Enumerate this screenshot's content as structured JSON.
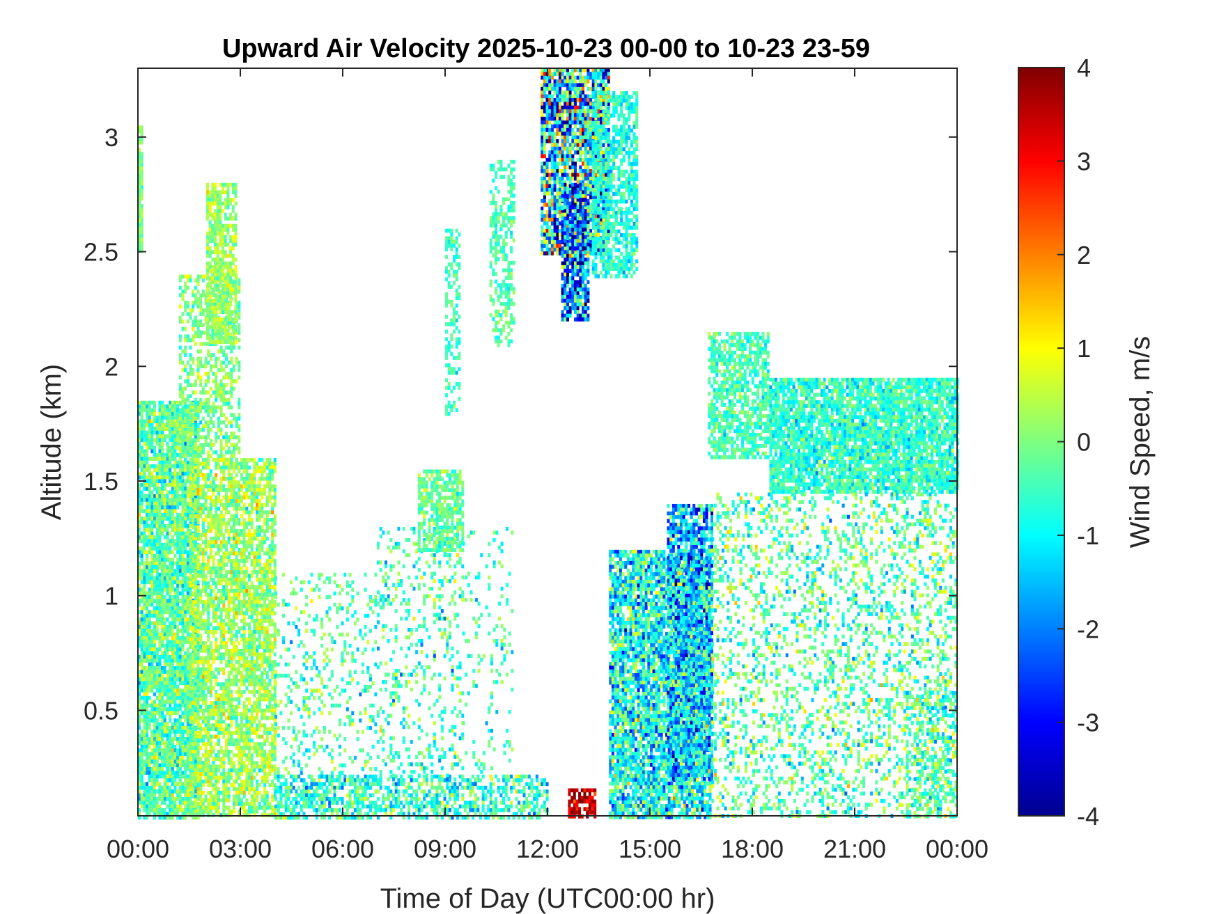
{
  "chart_data": {
    "type": "heatmap",
    "title": "Upward Air Velocity 2025-10-23 00-00 to 10-23 23-59",
    "xlabel": "Time of Day (UTC00:00 hr)",
    "ylabel": "Altitude (km)",
    "colorbar_label": "Wind Speed, m/s",
    "colormap": "jet",
    "x_unit": "hours",
    "xlim": [
      0,
      24
    ],
    "ylim": [
      0.04,
      3.3
    ],
    "clim": [
      -4,
      4
    ],
    "x_ticks": [
      0,
      3,
      6,
      9,
      12,
      15,
      18,
      21,
      24
    ],
    "x_tick_labels": [
      "00:00",
      "03:00",
      "06:00",
      "09:00",
      "12:00",
      "15:00",
      "18:00",
      "21:00",
      "00:00"
    ],
    "y_ticks": [
      0.5,
      1,
      1.5,
      2,
      2.5,
      3
    ],
    "y_tick_labels": [
      "0.5",
      "1",
      "1.5",
      "2",
      "2.5",
      "3"
    ],
    "colorbar_ticks": [
      4,
      3,
      2,
      1,
      0,
      -1,
      -2,
      -3,
      -4
    ],
    "colorbar_tick_labels": [
      "4",
      "3",
      "2",
      "1",
      "0",
      "-1",
      "-2",
      "-3",
      "-4"
    ],
    "grid": false,
    "regions": [
      {
        "x": [
          0.0,
          1.8
        ],
        "y": [
          0.04,
          1.85
        ],
        "mean": -0.3,
        "spread": 0.9,
        "density": 0.88
      },
      {
        "x": [
          0.0,
          0.15
        ],
        "y": [
          2.5,
          3.05
        ],
        "mean": 0.0,
        "spread": 0.5,
        "density": 0.9
      },
      {
        "x": [
          1.5,
          4.0
        ],
        "y": [
          0.04,
          1.6
        ],
        "mean": 0.2,
        "spread": 0.8,
        "density": 0.75
      },
      {
        "x": [
          1.2,
          3.0
        ],
        "y": [
          1.6,
          2.4
        ],
        "mean": 0.0,
        "spread": 0.6,
        "density": 0.5
      },
      {
        "x": [
          2.0,
          2.9
        ],
        "y": [
          2.1,
          2.8
        ],
        "mean": 0.2,
        "spread": 0.6,
        "density": 0.75
      },
      {
        "x": [
          4.0,
          7.0
        ],
        "y": [
          0.04,
          1.1
        ],
        "mean": -0.4,
        "spread": 0.9,
        "density": 0.18
      },
      {
        "x": [
          4.0,
          12.0
        ],
        "y": [
          0.04,
          0.22
        ],
        "mean": -0.6,
        "spread": 1.0,
        "density": 0.55
      },
      {
        "x": [
          7.0,
          9.5
        ],
        "y": [
          0.2,
          1.3
        ],
        "mean": -0.5,
        "spread": 0.9,
        "density": 0.2
      },
      {
        "x": [
          8.2,
          9.5
        ],
        "y": [
          1.2,
          1.55
        ],
        "mean": -0.2,
        "spread": 0.6,
        "density": 0.72
      },
      {
        "x": [
          9.5,
          11.0
        ],
        "y": [
          0.2,
          1.3
        ],
        "mean": -0.5,
        "spread": 0.8,
        "density": 0.1
      },
      {
        "x": [
          9.0,
          9.4
        ],
        "y": [
          1.8,
          2.6
        ],
        "mean": -0.5,
        "spread": 0.5,
        "density": 0.5
      },
      {
        "x": [
          10.3,
          11.0
        ],
        "y": [
          2.1,
          2.9
        ],
        "mean": -0.4,
        "spread": 0.5,
        "density": 0.5
      },
      {
        "x": [
          11.8,
          13.8
        ],
        "y": [
          2.5,
          3.3
        ],
        "mean": -1.0,
        "spread": 2.8,
        "density": 0.85
      },
      {
        "x": [
          12.4,
          13.2
        ],
        "y": [
          2.2,
          2.8
        ],
        "mean": -2.0,
        "spread": 2.2,
        "density": 0.8
      },
      {
        "x": [
          13.3,
          14.6
        ],
        "y": [
          2.4,
          3.2
        ],
        "mean": -0.7,
        "spread": 0.6,
        "density": 0.65
      },
      {
        "x": [
          12.6,
          13.4
        ],
        "y": [
          0.04,
          0.16
        ],
        "mean": 3.5,
        "spread": 0.8,
        "density": 0.7
      },
      {
        "x": [
          13.8,
          16.8
        ],
        "y": [
          0.04,
          1.2
        ],
        "mean": -0.9,
        "spread": 1.3,
        "density": 0.82
      },
      {
        "x": [
          15.5,
          16.8
        ],
        "y": [
          0.2,
          1.4
        ],
        "mean": -1.4,
        "spread": 1.5,
        "density": 0.8
      },
      {
        "x": [
          16.7,
          18.5
        ],
        "y": [
          1.6,
          2.15
        ],
        "mean": -0.4,
        "spread": 0.6,
        "density": 0.7
      },
      {
        "x": [
          18.5,
          24.0
        ],
        "y": [
          1.45,
          1.95
        ],
        "mean": -0.6,
        "spread": 0.7,
        "density": 0.85
      },
      {
        "x": [
          16.8,
          24.0
        ],
        "y": [
          0.04,
          1.45
        ],
        "mean": -0.3,
        "spread": 1.0,
        "density": 0.3
      },
      {
        "x": [
          22.5,
          24.0
        ],
        "y": [
          0.04,
          0.6
        ],
        "mean": -0.5,
        "spread": 0.9,
        "density": 0.35
      }
    ]
  }
}
